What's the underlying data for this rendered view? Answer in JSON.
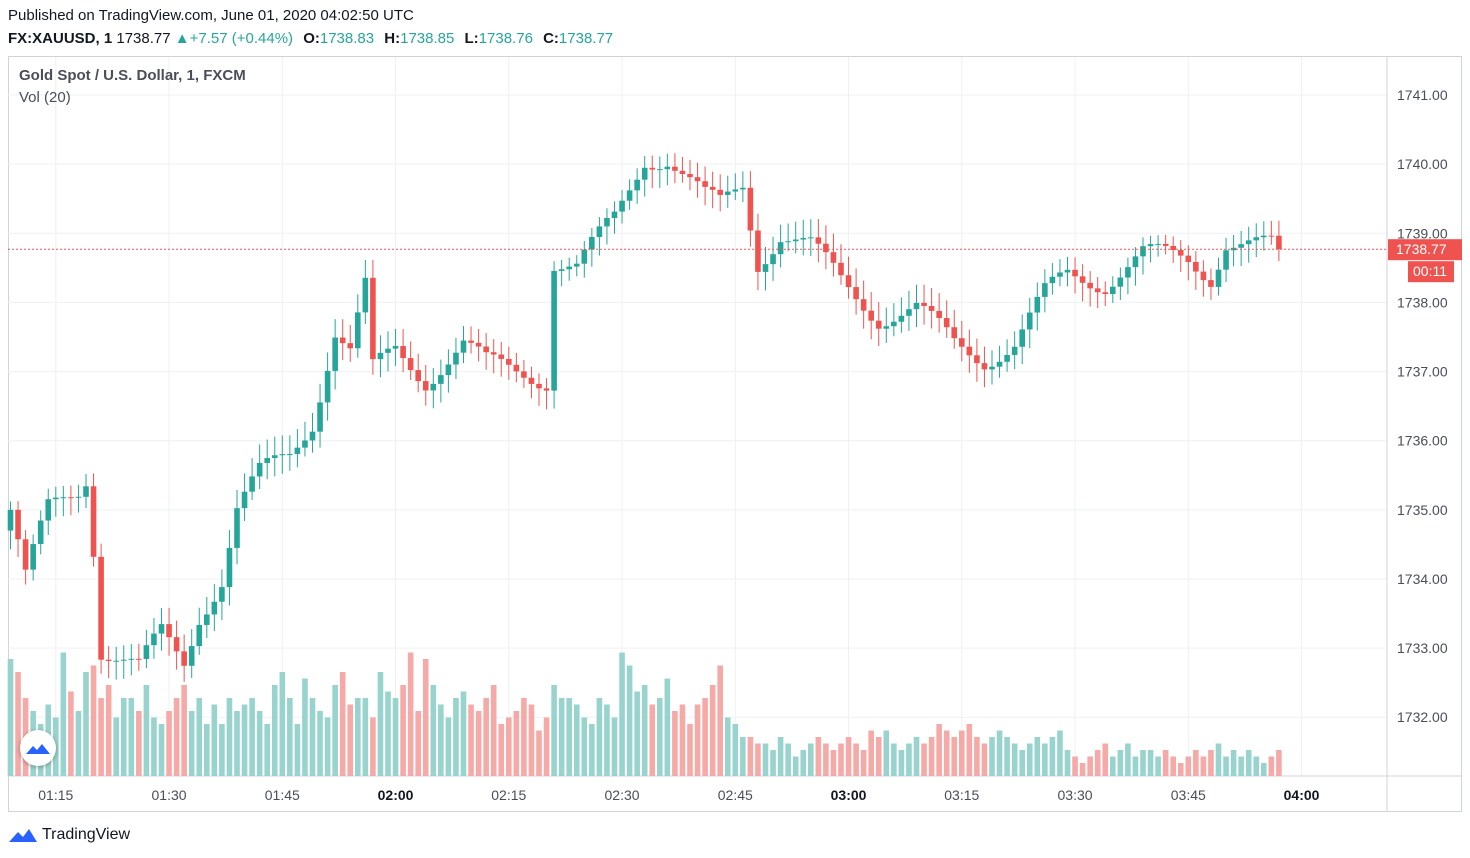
{
  "header": {
    "published": "Published on TradingView.com, June 01, 2020 04:02:50 UTC",
    "symbol": "FX:XAUUSD, 1",
    "last": "1738.77",
    "change": "+7.57 (+0.44%)",
    "o_label": "O:",
    "o": "1738.83",
    "h_label": "H:",
    "h": "1738.85",
    "l_label": "L:",
    "l": "1738.76",
    "c_label": "C:",
    "c": "1738.77"
  },
  "legend": {
    "title": "Gold Spot / U.S. Dollar, 1, FXCM",
    "volume": "Vol (20)"
  },
  "price_label": {
    "value": "1738.77",
    "countdown": "00:11"
  },
  "logo": {
    "text": "TradingView"
  },
  "colors": {
    "up": "#26a69a",
    "down": "#ef5350",
    "vol_up": "#98d4cd",
    "vol_down": "#f5aaa8",
    "grid": "#eef0f3",
    "axis_text": "#4a4e59"
  },
  "chart_data": {
    "type": "candlestick",
    "timeframe": "1 minute",
    "y_ticks": [
      "1741.00",
      "1740.00",
      "1739.00",
      "1738.00",
      "1737.00",
      "1736.00",
      "1735.00",
      "1734.00",
      "1733.00",
      "1732.00"
    ],
    "x_ticks": [
      {
        "label": "01:15",
        "bold": false
      },
      {
        "label": "01:30",
        "bold": false
      },
      {
        "label": "01:45",
        "bold": false
      },
      {
        "label": "02:00",
        "bold": true
      },
      {
        "label": "02:15",
        "bold": false
      },
      {
        "label": "02:30",
        "bold": false
      },
      {
        "label": "02:45",
        "bold": false
      },
      {
        "label": "03:00",
        "bold": true
      },
      {
        "label": "03:15",
        "bold": false
      },
      {
        "label": "03:30",
        "bold": false
      },
      {
        "label": "03:45",
        "bold": false
      },
      {
        "label": "04:00",
        "bold": true
      }
    ],
    "ylim": [
      1731.15,
      1741.55
    ],
    "close_anchors": [
      {
        "bar": 0,
        "price": 1735.0
      },
      {
        "bar": 2,
        "price": 1734.0
      },
      {
        "bar": 5,
        "price": 1735.0
      },
      {
        "bar": 9,
        "price": 1735.3
      },
      {
        "bar": 10,
        "price": 1735.5
      },
      {
        "bar": 11,
        "price": 1734.5
      },
      {
        "bar": 12,
        "price": 1733.0
      },
      {
        "bar": 17,
        "price": 1732.7
      },
      {
        "bar": 20,
        "price": 1733.2
      },
      {
        "bar": 23,
        "price": 1732.8
      },
      {
        "bar": 25,
        "price": 1733.5
      },
      {
        "bar": 28,
        "price": 1734.0
      },
      {
        "bar": 30,
        "price": 1735.0
      },
      {
        "bar": 33,
        "price": 1735.5
      },
      {
        "bar": 37,
        "price": 1735.8
      },
      {
        "bar": 40,
        "price": 1736.3
      },
      {
        "bar": 43,
        "price": 1737.6
      },
      {
        "bar": 45,
        "price": 1737.3
      },
      {
        "bar": 47,
        "price": 1738.2
      },
      {
        "bar": 48,
        "price": 1737.0
      },
      {
        "bar": 51,
        "price": 1737.3
      },
      {
        "bar": 55,
        "price": 1736.9
      },
      {
        "bar": 60,
        "price": 1737.4
      },
      {
        "bar": 63,
        "price": 1737.1
      },
      {
        "bar": 68,
        "price": 1737.0
      },
      {
        "bar": 71,
        "price": 1736.9
      },
      {
        "bar": 72,
        "price": 1738.6
      },
      {
        "bar": 75,
        "price": 1738.5
      },
      {
        "bar": 80,
        "price": 1739.2
      },
      {
        "bar": 84,
        "price": 1740.1
      },
      {
        "bar": 87,
        "price": 1740.1
      },
      {
        "bar": 92,
        "price": 1739.5
      },
      {
        "bar": 94,
        "price": 1739.4
      },
      {
        "bar": 97,
        "price": 1739.7
      },
      {
        "bar": 99,
        "price": 1738.6
      },
      {
        "bar": 102,
        "price": 1739.0
      },
      {
        "bar": 106,
        "price": 1738.8
      },
      {
        "bar": 110,
        "price": 1738.3
      },
      {
        "bar": 115,
        "price": 1737.8
      },
      {
        "bar": 120,
        "price": 1737.9
      },
      {
        "bar": 125,
        "price": 1737.4
      },
      {
        "bar": 129,
        "price": 1737.2
      },
      {
        "bar": 133,
        "price": 1737.4
      },
      {
        "bar": 137,
        "price": 1738.1
      },
      {
        "bar": 140,
        "price": 1738.4
      },
      {
        "bar": 145,
        "price": 1738.3
      },
      {
        "bar": 150,
        "price": 1738.7
      },
      {
        "bar": 156,
        "price": 1738.6
      },
      {
        "bar": 159,
        "price": 1738.4
      },
      {
        "bar": 161,
        "price": 1738.9
      },
      {
        "bar": 166,
        "price": 1738.8
      },
      {
        "bar": 168,
        "price": 1738.77
      }
    ],
    "volume_bins": [
      90,
      80,
      60,
      50,
      40,
      55,
      45,
      95,
      65,
      50,
      80,
      85,
      60,
      70,
      45,
      60,
      60,
      50,
      70,
      45,
      40,
      50,
      60,
      70,
      50,
      60,
      40,
      55,
      40,
      60,
      50,
      55,
      60,
      50,
      40,
      70,
      80,
      60,
      40,
      75,
      60,
      50,
      45,
      70,
      80,
      55,
      60,
      60,
      45,
      80,
      65,
      60,
      70,
      95,
      50,
      90,
      70,
      55,
      45,
      60,
      65,
      55,
      50,
      60,
      70,
      40,
      45,
      50,
      60,
      55,
      35,
      45,
      70,
      60,
      60,
      55,
      45,
      40,
      60,
      55,
      45,
      95,
      85,
      65,
      70,
      55,
      60,
      75,
      50,
      55,
      40,
      55,
      60,
      70,
      85,
      45,
      40,
      30,
      30,
      25,
      25,
      20,
      30,
      25,
      15,
      20,
      25,
      30,
      25,
      20,
      25,
      30,
      25,
      20,
      35,
      30,
      35,
      25,
      20,
      25,
      30,
      25,
      30,
      40,
      35,
      30,
      35,
      40,
      30,
      25,
      30,
      35,
      30,
      25,
      20,
      25,
      30,
      25,
      30,
      35,
      20,
      15,
      10,
      15,
      20,
      25,
      15,
      20,
      25,
      15,
      20,
      20,
      15,
      20,
      15,
      10,
      15,
      20,
      15,
      20,
      25,
      15,
      20,
      15,
      20,
      15,
      10,
      15,
      20,
      25,
      10
    ]
  }
}
